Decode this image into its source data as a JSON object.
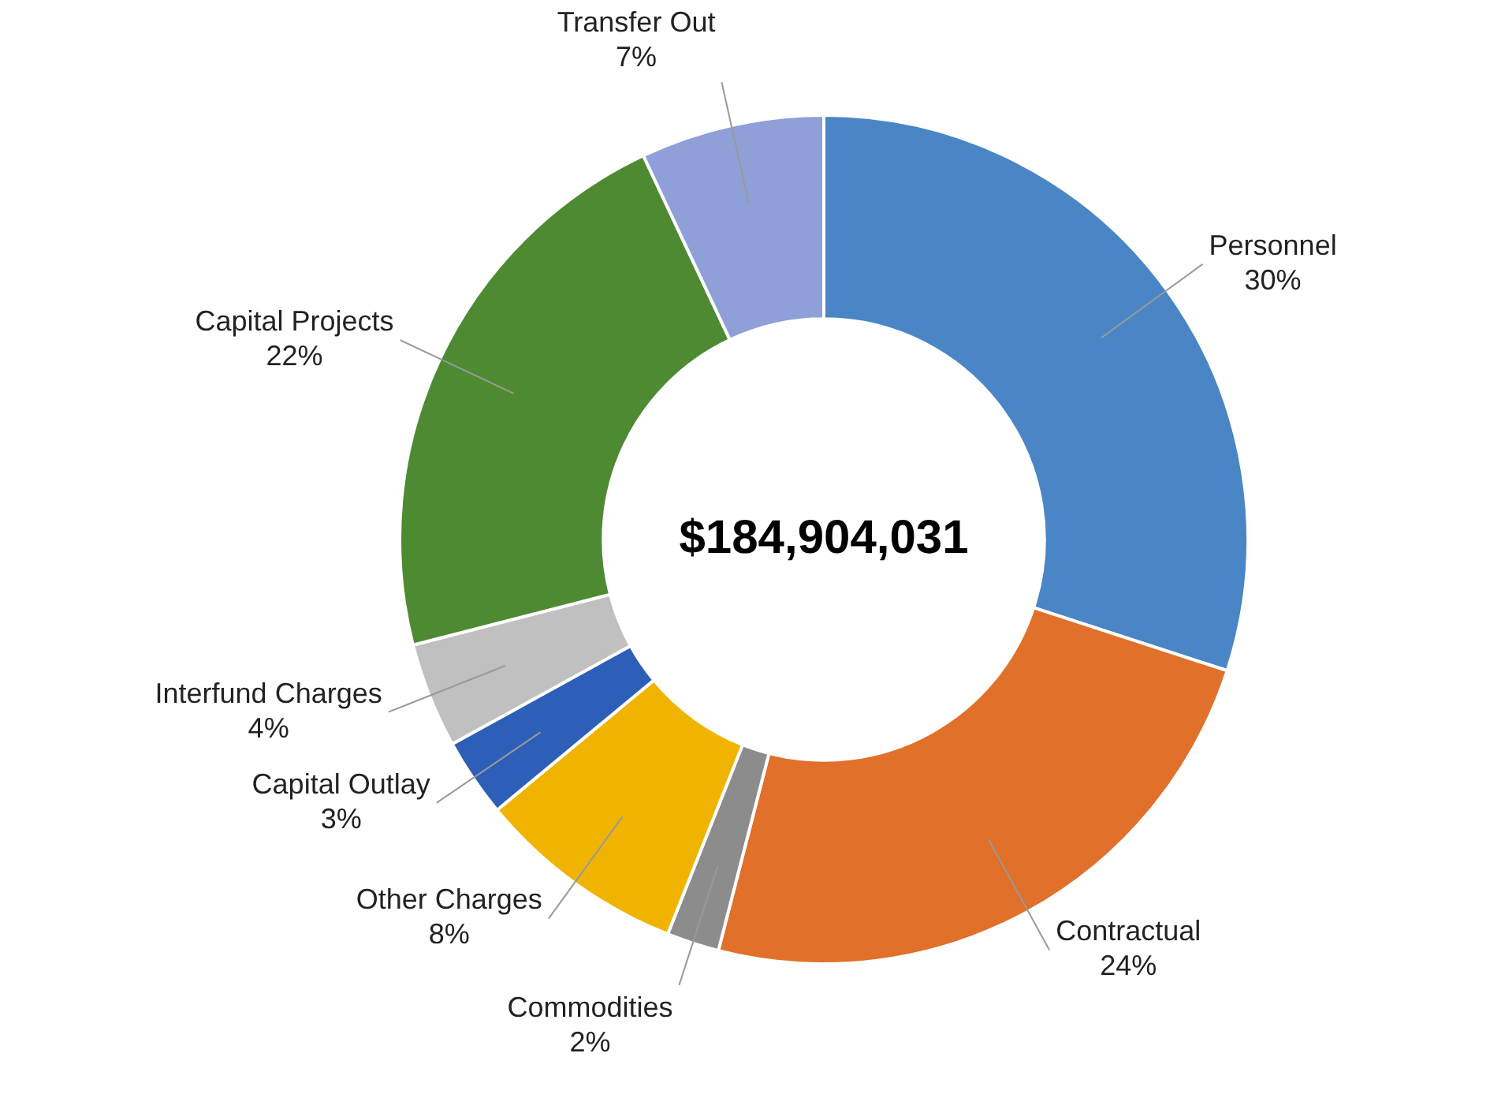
{
  "chart_data": {
    "type": "donut",
    "categories": [
      "Personnel",
      "Contractual",
      "Commodities",
      "Other Charges",
      "Capital Outlay",
      "Interfund Charges",
      "Capital Projects",
      "Transfer Out"
    ],
    "values": [
      30,
      24,
      2,
      8,
      3,
      4,
      22,
      7
    ],
    "colors": [
      "#4a86c5",
      "#e0702a",
      "#8c8c8c",
      "#f0b400",
      "#2e5fb8",
      "#c0c0c0",
      "#4e8a32",
      "#8fa0d8"
    ],
    "value_labels": [
      "30%",
      "24%",
      "2%",
      "8%",
      "3%",
      "4%",
      "22%",
      "7%"
    ],
    "legend": false,
    "annotations": [
      "$184,904,031"
    ]
  }
}
